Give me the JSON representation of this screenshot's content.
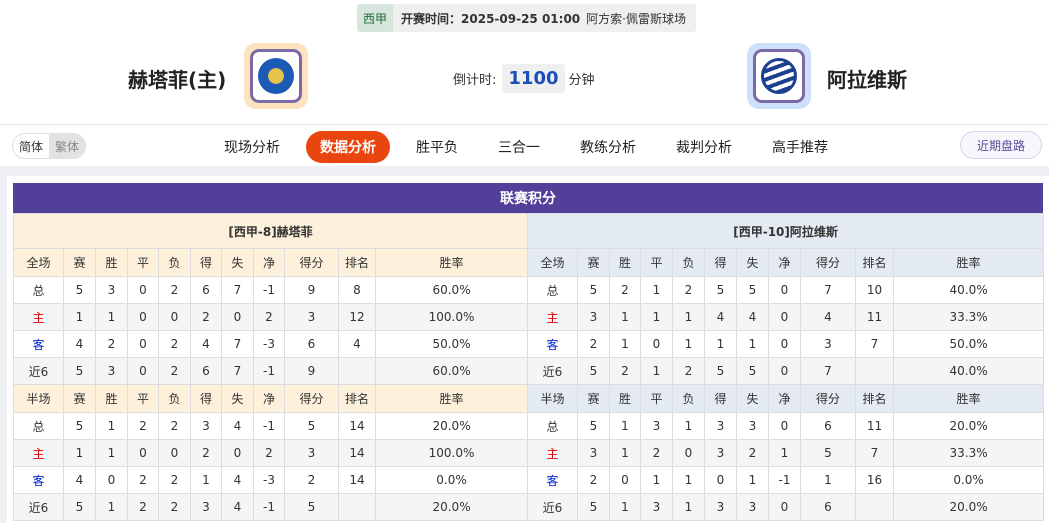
{
  "match": {
    "league": "西甲",
    "start_label": "开赛时间：2025-09-25 01:00",
    "venue": "阿方索·佩雷斯球场",
    "home": {
      "name": "赫塔菲(主)",
      "logo_text": "GETAFE C.F. S.A.D.",
      "color": "#1c5bb5"
    },
    "away": {
      "name": "阿拉维斯",
      "logo_text": "DEPORTIVO ALAVES",
      "color": "#1c3f8f"
    },
    "countdown_label": "倒计时:",
    "countdown_value": "1100",
    "countdown_unit": "分钟"
  },
  "nav": {
    "lang": [
      "简体",
      "繁体"
    ],
    "tabs": [
      "现场分析",
      "数据分析",
      "胜平负",
      "三合一",
      "教练分析",
      "裁判分析",
      "高手推荐"
    ],
    "active_tab": "数据分析",
    "recent_label": "近期盘路"
  },
  "standings": {
    "title": "联赛积分",
    "home": {
      "team_label": "[西甲-8]赫塔菲",
      "full": {
        "header": [
          "全场",
          "赛",
          "胜",
          "平",
          "负",
          "得",
          "失",
          "净",
          "得分",
          "排名",
          "胜率"
        ],
        "rows": [
          [
            "总",
            "5",
            "3",
            "0",
            "2",
            "6",
            "7",
            "-1",
            "9",
            "8",
            "60.0%"
          ],
          [
            "主",
            "1",
            "1",
            "0",
            "0",
            "2",
            "0",
            "2",
            "3",
            "12",
            "100.0%"
          ],
          [
            "客",
            "4",
            "2",
            "0",
            "2",
            "4",
            "7",
            "-3",
            "6",
            "4",
            "50.0%"
          ],
          [
            "近6",
            "5",
            "3",
            "0",
            "2",
            "6",
            "7",
            "-1",
            "9",
            "",
            "60.0%"
          ]
        ]
      },
      "half": {
        "header": [
          "半场",
          "赛",
          "胜",
          "平",
          "负",
          "得",
          "失",
          "净",
          "得分",
          "排名",
          "胜率"
        ],
        "rows": [
          [
            "总",
            "5",
            "1",
            "2",
            "2",
            "3",
            "4",
            "-1",
            "5",
            "14",
            "20.0%"
          ],
          [
            "主",
            "1",
            "1",
            "0",
            "0",
            "2",
            "0",
            "2",
            "3",
            "14",
            "100.0%"
          ],
          [
            "客",
            "4",
            "0",
            "2",
            "2",
            "1",
            "4",
            "-3",
            "2",
            "14",
            "0.0%"
          ],
          [
            "近6",
            "5",
            "1",
            "2",
            "2",
            "3",
            "4",
            "-1",
            "5",
            "",
            "20.0%"
          ]
        ]
      }
    },
    "away": {
      "team_label": "[西甲-10]阿拉维斯",
      "full": {
        "header": [
          "全场",
          "赛",
          "胜",
          "平",
          "负",
          "得",
          "失",
          "净",
          "得分",
          "排名",
          "胜率"
        ],
        "rows": [
          [
            "总",
            "5",
            "2",
            "1",
            "2",
            "5",
            "5",
            "0",
            "7",
            "10",
            "40.0%"
          ],
          [
            "主",
            "3",
            "1",
            "1",
            "1",
            "4",
            "4",
            "0",
            "4",
            "11",
            "33.3%"
          ],
          [
            "客",
            "2",
            "1",
            "0",
            "1",
            "1",
            "1",
            "0",
            "3",
            "7",
            "50.0%"
          ],
          [
            "近6",
            "5",
            "2",
            "1",
            "2",
            "5",
            "5",
            "0",
            "7",
            "",
            "40.0%"
          ]
        ]
      },
      "half": {
        "header": [
          "半场",
          "赛",
          "胜",
          "平",
          "负",
          "得",
          "失",
          "净",
          "得分",
          "排名",
          "胜率"
        ],
        "rows": [
          [
            "总",
            "5",
            "1",
            "3",
            "1",
            "3",
            "3",
            "0",
            "6",
            "11",
            "20.0%"
          ],
          [
            "主",
            "3",
            "1",
            "2",
            "0",
            "3",
            "2",
            "1",
            "5",
            "7",
            "33.3%"
          ],
          [
            "客",
            "2",
            "0",
            "1",
            "1",
            "0",
            "1",
            "-1",
            "1",
            "16",
            "0.0%"
          ],
          [
            "近6",
            "5",
            "1",
            "3",
            "1",
            "3",
            "3",
            "0",
            "6",
            "",
            "20.0%"
          ]
        ]
      }
    }
  }
}
